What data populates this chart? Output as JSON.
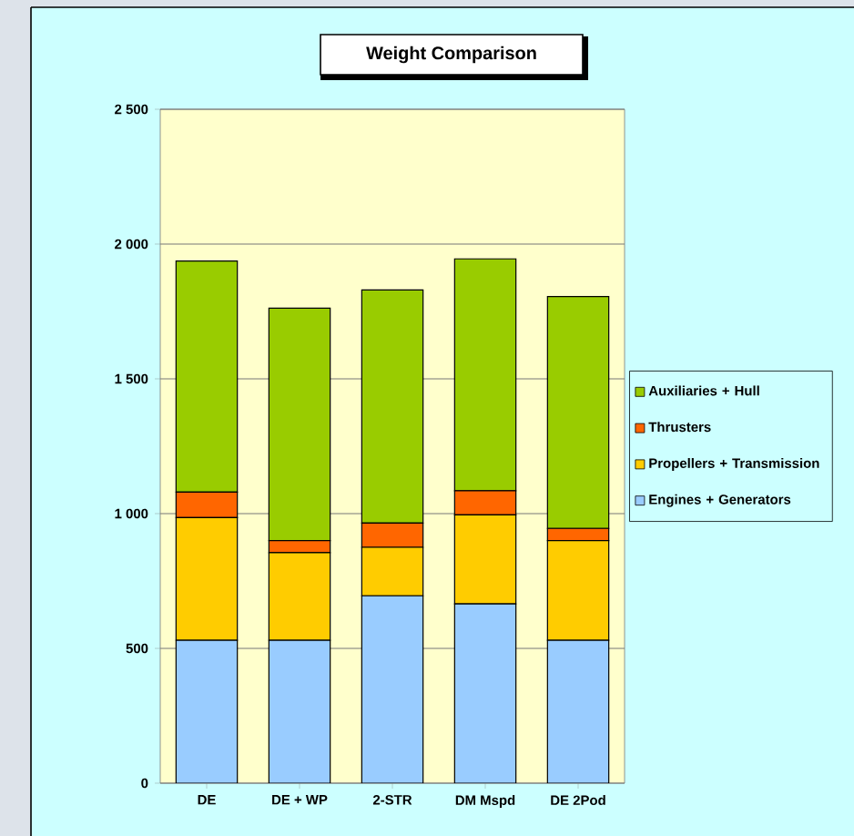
{
  "chart_data": {
    "type": "bar",
    "title": "Weight Comparison",
    "stacked": true,
    "categories": [
      "DE",
      "DE + WP",
      "2-STR",
      "DM Mspd",
      "DE 2Pod"
    ],
    "series": [
      {
        "name": "Engines + Generators",
        "color": "#99ccff",
        "values": [
          530,
          530,
          695,
          665,
          530
        ]
      },
      {
        "name": "Propellers + Transmission",
        "color": "#ffcc00",
        "values": [
          455,
          325,
          180,
          330,
          370
        ]
      },
      {
        "name": "Thrusters",
        "color": "#ff6600",
        "values": [
          95,
          45,
          90,
          90,
          45
        ]
      },
      {
        "name": "Auxiliaries + Hull",
        "color": "#99cc00",
        "values": [
          857,
          862,
          865,
          860,
          860
        ]
      }
    ],
    "ylim": [
      0,
      2500
    ],
    "yticks": [
      0,
      500,
      {
        "value": 1000,
        "label": "1 000"
      },
      {
        "value": 1500,
        "label": "1 500"
      },
      {
        "value": 2000,
        "label": "2 000"
      },
      {
        "value": 2500,
        "label": "2 500"
      }
    ],
    "grid": "y",
    "legend": "right"
  }
}
